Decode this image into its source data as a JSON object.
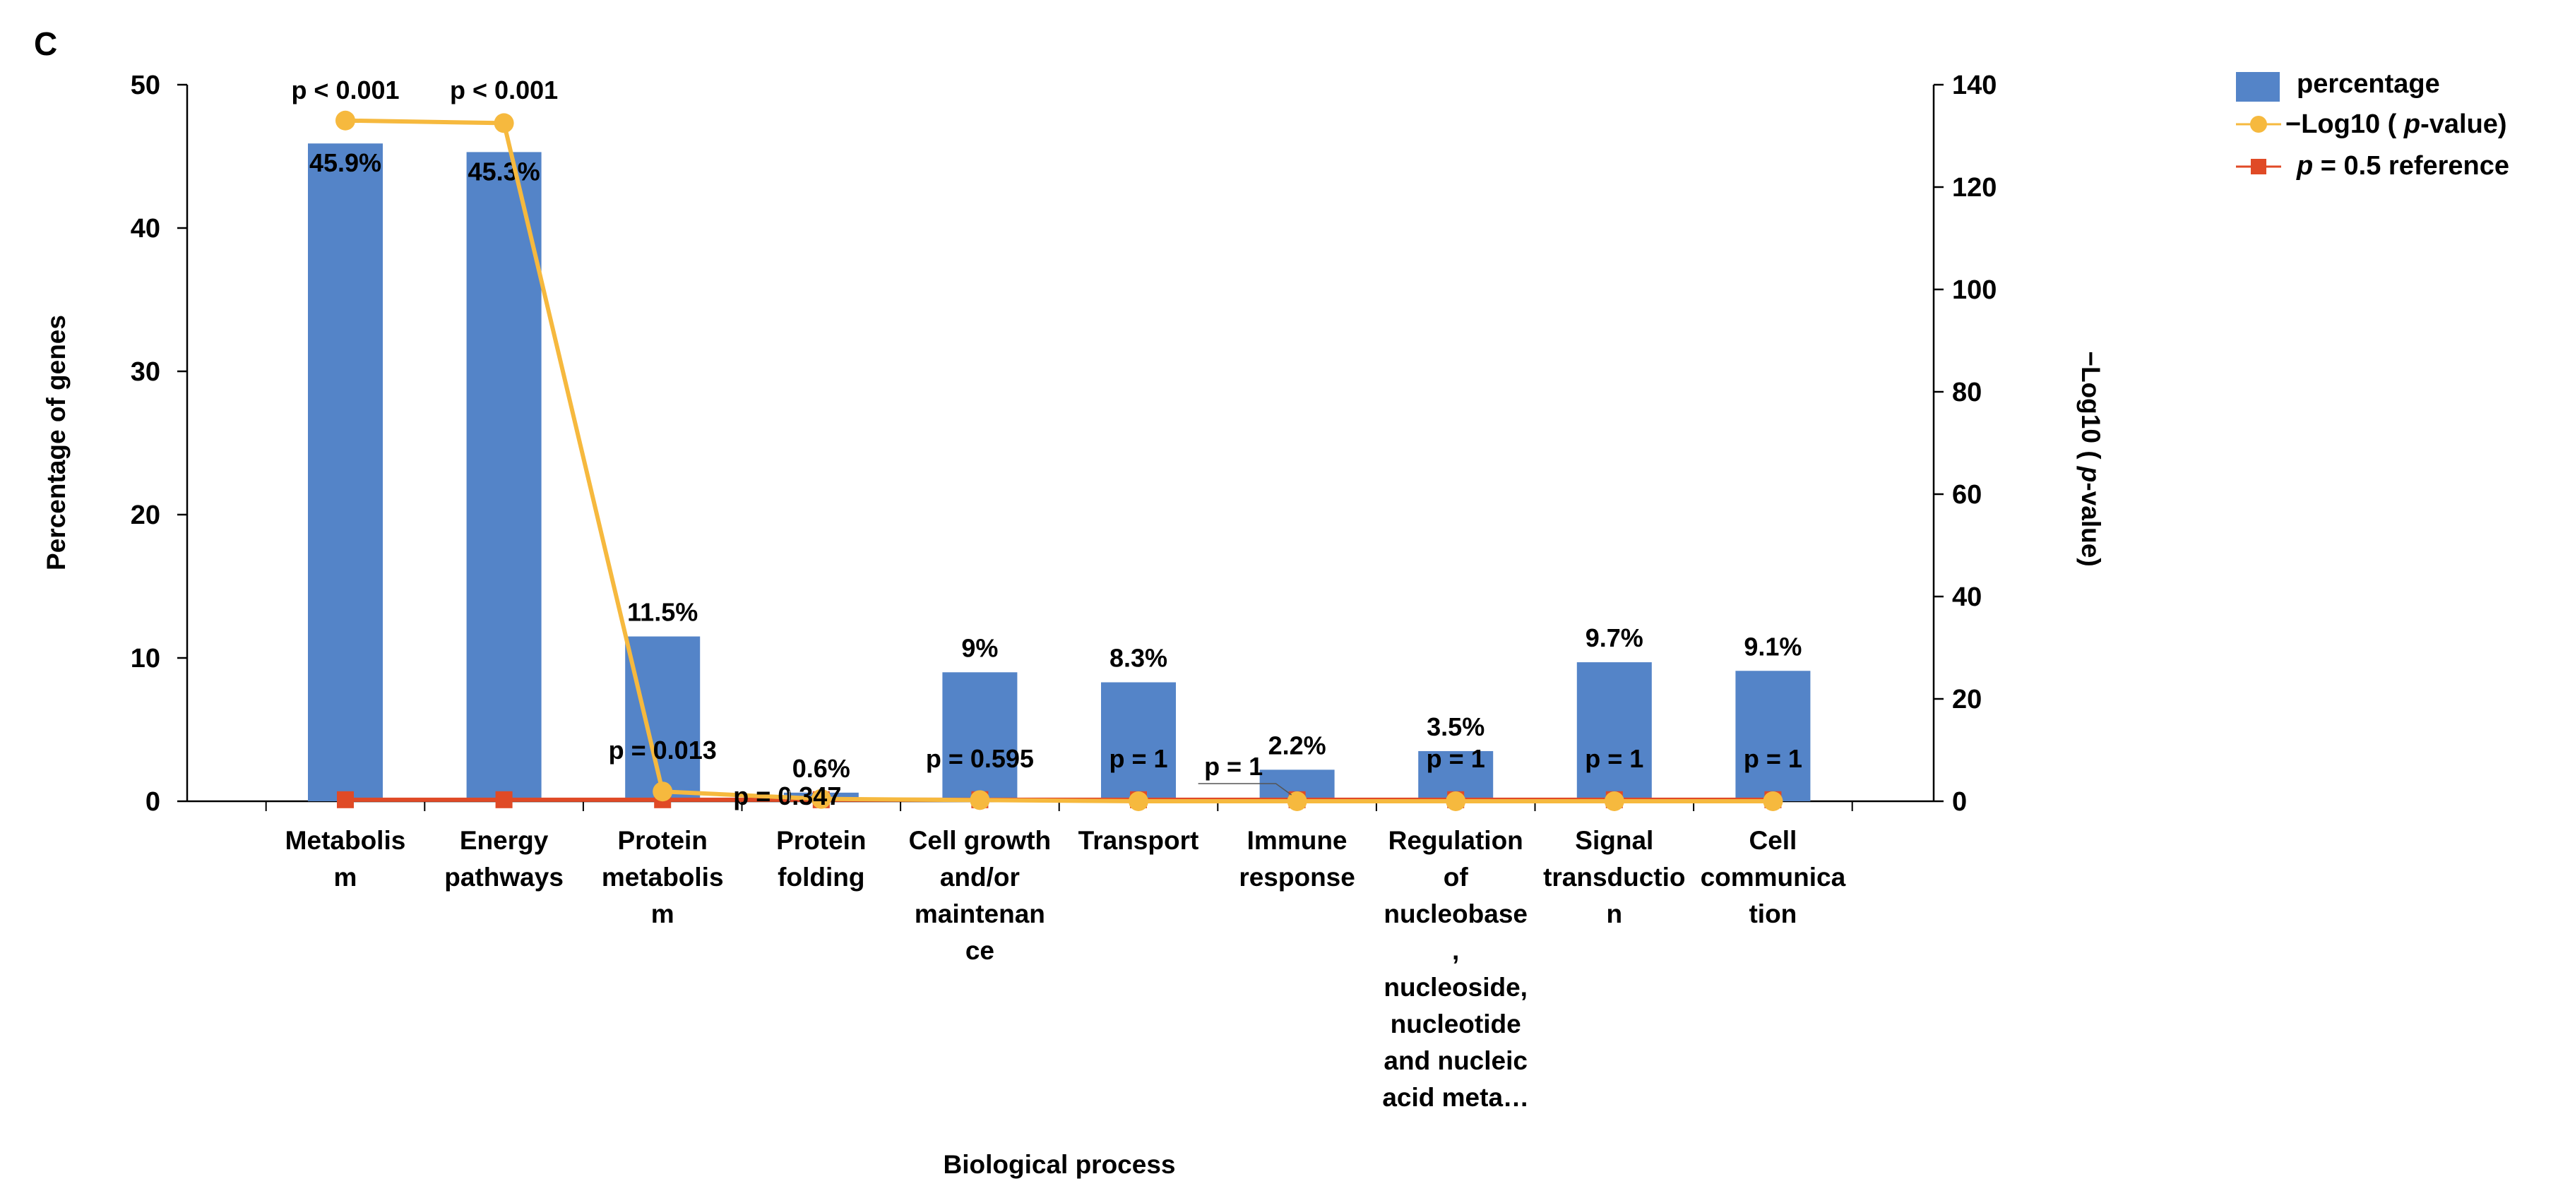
{
  "panel_label": "C",
  "chart_data": {
    "type": "bar",
    "title": "",
    "xlabel": "Biological process",
    "ylabel": "Percentage of genes",
    "y2label": "−Log10 ( p-value)",
    "ylim": [
      0,
      50
    ],
    "y2lim": [
      0,
      140
    ],
    "yticks": [
      "0",
      "10",
      "20",
      "30",
      "40",
      "50"
    ],
    "y2ticks": [
      "0",
      "20",
      "40",
      "60",
      "80",
      "100",
      "120",
      "140"
    ],
    "categories": [
      [
        "Metabolis",
        "m"
      ],
      [
        "Energy",
        "pathways"
      ],
      [
        "Protein",
        "metabolis",
        "m"
      ],
      [
        "Protein",
        "folding"
      ],
      [
        "Cell growth",
        "and/or",
        "maintenan",
        "ce"
      ],
      [
        "Transport"
      ],
      [
        "Immune",
        "response"
      ],
      [
        "Regulation",
        "of",
        "nucleobase",
        ",",
        "nucleoside,",
        "nucleotide",
        "and nucleic",
        "acid meta…"
      ],
      [
        "Signal",
        "transductio",
        "n"
      ],
      [
        "Cell",
        "communica",
        "tion"
      ]
    ],
    "series": [
      {
        "name": "percentage",
        "axis": "left",
        "color": "#5484c8",
        "values": [
          45.9,
          45.3,
          11.5,
          0.6,
          9,
          8.3,
          2.2,
          3.5,
          9.7,
          9.1
        ],
        "labels": [
          "45.9%",
          "45.3%",
          "11.5%",
          "0.6%",
          "9%",
          "8.3%",
          "2.2%",
          "3.5%",
          "9.7%",
          "9.1%"
        ]
      },
      {
        "name": "−Log10 ( p-value)",
        "axis": "right",
        "color": "#f6b93e",
        "values": [
          133,
          132.5,
          1.9,
          0.46,
          0.23,
          0,
          0,
          0,
          0,
          0
        ],
        "labels": [
          "p < 0.001",
          "p < 0.001",
          "p = 0.013",
          "p = 0.347",
          "p = 0.595",
          "p = 1",
          "p = 1",
          "p = 1",
          "p = 1",
          "p = 1"
        ]
      },
      {
        "name": "p = 0.5 reference",
        "axis": "right",
        "color": "#e04a26",
        "values": [
          0.3,
          0.3,
          0.3,
          0.3,
          0.3,
          0.3,
          0.3,
          0.3,
          0.3,
          0.3
        ]
      }
    ],
    "legend": {
      "position": "top-right",
      "entries": [
        {
          "label": "percentage",
          "color": "#5484c8"
        },
        {
          "label_prefix": "−Log10 ( ",
          "label_italic": "p",
          "label_suffix": "-value)",
          "color": "#f6b93e"
        },
        {
          "label_italic": "p",
          "label_suffix": " = 0.5 reference",
          "color": "#e04a26"
        }
      ]
    }
  }
}
